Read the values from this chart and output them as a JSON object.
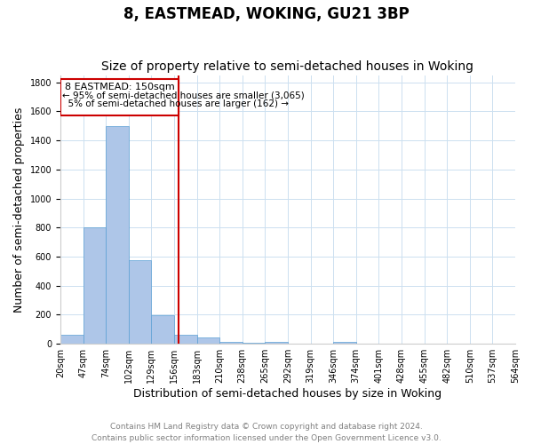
{
  "title": "8, EASTMEAD, WOKING, GU21 3BP",
  "subtitle": "Size of property relative to semi-detached houses in Woking",
  "xlabel": "Distribution of semi-detached houses by size in Woking",
  "ylabel": "Number of semi-detached properties",
  "bin_labels": [
    "20sqm",
    "47sqm",
    "74sqm",
    "102sqm",
    "129sqm",
    "156sqm",
    "183sqm",
    "210sqm",
    "238sqm",
    "265sqm",
    "292sqm",
    "319sqm",
    "346sqm",
    "374sqm",
    "401sqm",
    "428sqm",
    "455sqm",
    "482sqm",
    "510sqm",
    "537sqm",
    "564sqm"
  ],
  "bar_heights": [
    60,
    800,
    1500,
    575,
    195,
    65,
    45,
    15,
    10,
    15,
    0,
    0,
    15,
    0,
    0,
    0,
    0,
    0,
    0,
    0
  ],
  "bar_color": "#aec6e8",
  "bar_edge_color": "#5a9fd4",
  "property_label": "8 EASTMEAD: 150sqm",
  "pct_smaller": 95,
  "count_smaller": 3065,
  "pct_larger": 5,
  "count_larger": 162,
  "vline_color": "#cc0000",
  "vline_bin_index": 4.7,
  "ylim": [
    0,
    1850
  ],
  "yticks": [
    0,
    200,
    400,
    600,
    800,
    1000,
    1200,
    1400,
    1600,
    1800
  ],
  "annotation_box_color": "#cc0000",
  "footer_line1": "Contains HM Land Registry data © Crown copyright and database right 2024.",
  "footer_line2": "Contains public sector information licensed under the Open Government Licence v3.0.",
  "title_fontsize": 12,
  "subtitle_fontsize": 10,
  "xlabel_fontsize": 9,
  "ylabel_fontsize": 9,
  "tick_fontsize": 7,
  "footer_fontsize": 6.5,
  "annotation_fontsize": 8
}
